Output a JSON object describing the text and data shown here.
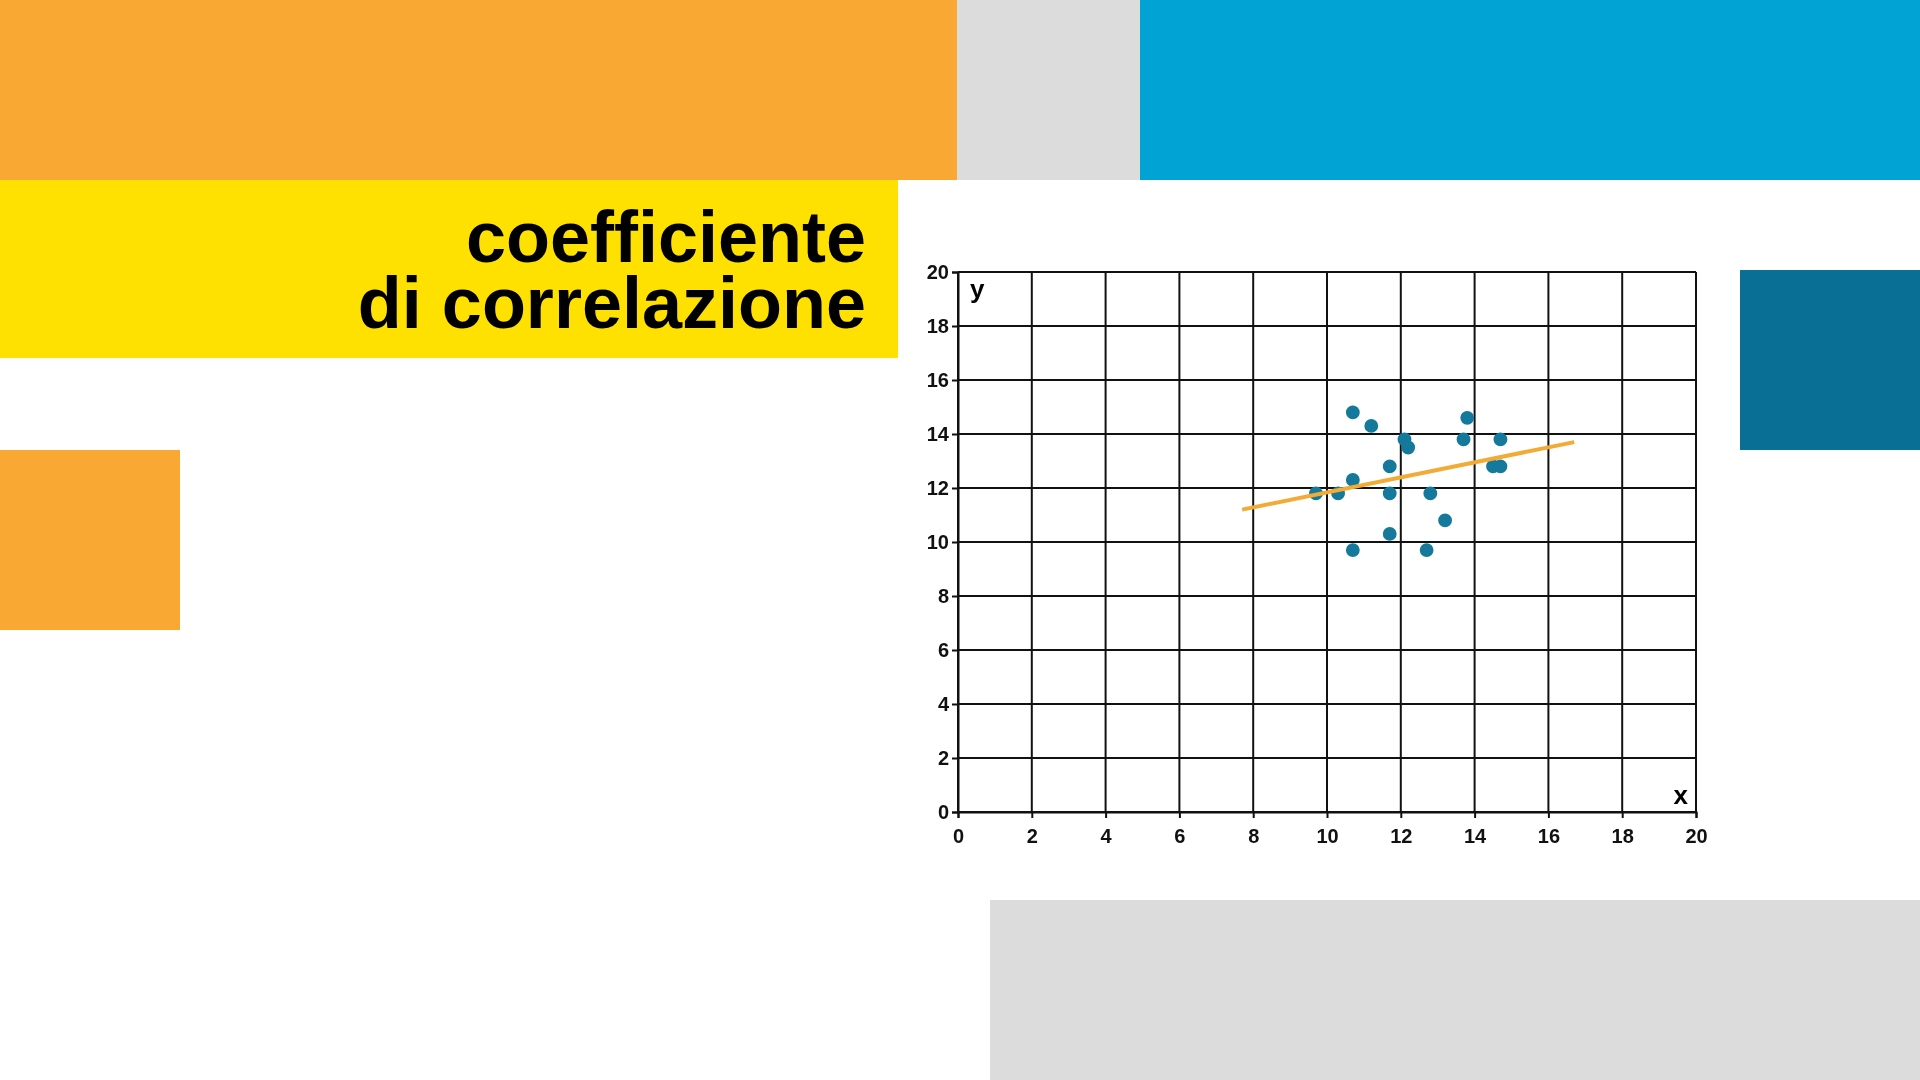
{
  "chart_data": {
    "type": "scatter",
    "title": "coefficiente di correlazione",
    "xlabel": "x",
    "ylabel": "y",
    "xlim": [
      0,
      20
    ],
    "ylim": [
      0,
      20
    ],
    "xticks": [
      0,
      2,
      4,
      6,
      8,
      10,
      12,
      14,
      16,
      18,
      20
    ],
    "yticks": [
      0,
      2,
      4,
      6,
      8,
      10,
      12,
      14,
      16,
      18,
      20
    ],
    "grid": true,
    "series": [
      {
        "color": "#15799b",
        "marker": "circle",
        "x": [
          10.7,
          11.2,
          12.1,
          12.2,
          13.7,
          13.8,
          14.7,
          14.5,
          14.7,
          11.7,
          10.7,
          9.7,
          10.3,
          11.7,
          12.8,
          13.2,
          11.7,
          10.7,
          12.7
        ],
        "values": [
          14.8,
          14.3,
          13.8,
          13.5,
          13.8,
          14.6,
          13.8,
          12.8,
          12.8,
          12.8,
          12.3,
          11.8,
          11.8,
          11.8,
          11.8,
          10.8,
          10.3,
          9.7,
          9.7
        ]
      },
      {
        "type": "line",
        "color": "#f2ab35",
        "line_style": "solid",
        "x": [
          7.7,
          16.7
        ],
        "values": [
          11.2,
          13.7
        ]
      }
    ]
  }
}
